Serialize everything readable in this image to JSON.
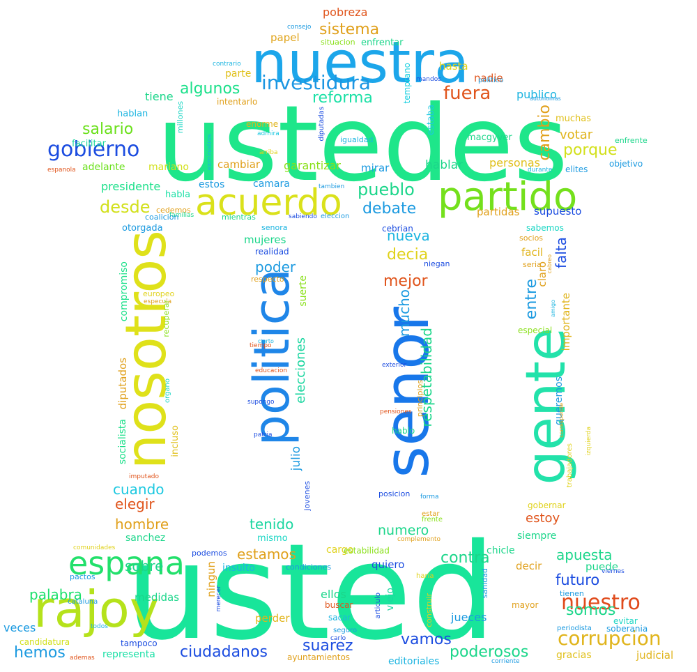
{
  "words": [
    {
      "text": "ustedes",
      "color": "#1ee68a"
    },
    {
      "text": "usted",
      "color": "#18e59a"
    },
    {
      "text": "nuestra",
      "color": "#1ca6ea"
    },
    {
      "text": "senor",
      "color": "#1877ea"
    },
    {
      "text": "gente",
      "color": "#22e2aa"
    },
    {
      "text": "nosotros",
      "color": "#dfe11a"
    },
    {
      "text": "politica",
      "color": "#1f86e8"
    },
    {
      "text": "partido",
      "color": "#74e01c"
    },
    {
      "text": "acuerdo",
      "color": "#dae11b"
    },
    {
      "text": "rajoy",
      "color": "#b5e21b"
    },
    {
      "text": "espana",
      "color": "#22e06b"
    },
    {
      "text": "gobierno",
      "color": "#1b4ce0"
    },
    {
      "text": "investidura",
      "color": "#1c96e2"
    },
    {
      "text": "corrupcion",
      "color": "#e0b41b"
    },
    {
      "text": "nuestro",
      "color": "#e04a1b"
    },
    {
      "text": "pobreza",
      "color": "#e0541b"
    },
    {
      "text": "sistema",
      "color": "#e0a01b"
    },
    {
      "text": "papel",
      "color": "#e0a41b"
    },
    {
      "text": "situacion",
      "color": "#8ae01b"
    },
    {
      "text": "enfrentar",
      "color": "#1bd68a"
    },
    {
      "text": "consejo",
      "color": "#1b9ae0"
    },
    {
      "text": "contrario",
      "color": "#1bb4e0"
    },
    {
      "text": "parte",
      "color": "#e0c01b"
    },
    {
      "text": "algunos",
      "color": "#1be08a"
    },
    {
      "text": "intentarlo",
      "color": "#e0a01b"
    },
    {
      "text": "reforma",
      "color": "#1be0a6"
    },
    {
      "text": "fuera",
      "color": "#e0541b"
    },
    {
      "text": "hasta",
      "color": "#e0d21b"
    },
    {
      "text": "nadie",
      "color": "#e0541b"
    },
    {
      "text": "publico",
      "color": "#1bb4e0"
    },
    {
      "text": "temprano",
      "color": "#1bd0e0"
    },
    {
      "text": "mandos",
      "color": "#1b4ce0"
    },
    {
      "text": "politico",
      "color": "#1b9ae0"
    },
    {
      "text": "autonomas",
      "color": "#1b9ae0"
    },
    {
      "text": "tiene",
      "color": "#1bd68a"
    },
    {
      "text": "hablan",
      "color": "#1bb4e0"
    },
    {
      "text": "millones",
      "color": "#1bd6c4"
    },
    {
      "text": "salario",
      "color": "#6be01b"
    },
    {
      "text": "facilitar",
      "color": "#1bd6a0"
    },
    {
      "text": "enorme",
      "color": "#e0b41b"
    },
    {
      "text": "admira",
      "color": "#1bc8e0"
    },
    {
      "text": "exministros",
      "color": "#1bb4e0"
    },
    {
      "text": "arriba",
      "color": "#e0d21b"
    },
    {
      "text": "diputadas",
      "color": "#1b4ce0"
    },
    {
      "text": "estaba",
      "color": "#1bc8e0"
    },
    {
      "text": "igualdad",
      "color": "#1bb4e0"
    },
    {
      "text": "macgyver",
      "color": "#1bd68a"
    },
    {
      "text": "muchas",
      "color": "#e0c01b"
    },
    {
      "text": "enfrente",
      "color": "#1bd68a"
    },
    {
      "text": "votar",
      "color": "#e0b41b"
    },
    {
      "text": "cambio",
      "color": "#e0a01b"
    },
    {
      "text": "porque",
      "color": "#d2e01b"
    },
    {
      "text": "objetivo",
      "color": "#1b9ae0"
    },
    {
      "text": "elites",
      "color": "#1b9ae0"
    },
    {
      "text": "durante",
      "color": "#1bb4e0"
    },
    {
      "text": "espanola",
      "color": "#e0541b"
    },
    {
      "text": "adelante",
      "color": "#6be01b"
    },
    {
      "text": "mariano",
      "color": "#d2e01b"
    },
    {
      "text": "cambiar",
      "color": "#e0a01b"
    },
    {
      "text": "garantizar",
      "color": "#8ae01b"
    },
    {
      "text": "mirar",
      "color": "#1b9ae0"
    },
    {
      "text": "hablar",
      "color": "#1bd68a"
    },
    {
      "text": "personas",
      "color": "#e0c01b"
    },
    {
      "text": "presidente",
      "color": "#1be08a"
    },
    {
      "text": "estos",
      "color": "#1b9ae0"
    },
    {
      "text": "camara",
      "color": "#1b9ae0"
    },
    {
      "text": "tambien",
      "color": "#1b9ae0"
    },
    {
      "text": "pueblo",
      "color": "#1bd68a"
    },
    {
      "text": "habla",
      "color": "#1be0a6"
    },
    {
      "text": "desde",
      "color": "#d2e01b"
    },
    {
      "text": "cedemos",
      "color": "#e0a01b"
    },
    {
      "text": "familias",
      "color": "#1bd68a"
    },
    {
      "text": "debate",
      "color": "#1b9ae0"
    },
    {
      "text": "partidas",
      "color": "#e0a01b"
    },
    {
      "text": "supuesto",
      "color": "#1b4ce0"
    },
    {
      "text": "coalicion",
      "color": "#1b9ae0"
    },
    {
      "text": "mientras",
      "color": "#1bd68a"
    },
    {
      "text": "sabiendo",
      "color": "#1b4ce0"
    },
    {
      "text": "eleccion",
      "color": "#1b9ae0"
    },
    {
      "text": "otorgada",
      "color": "#1b9ae0"
    },
    {
      "text": "senora",
      "color": "#1bb4e0"
    },
    {
      "text": "cebrian",
      "color": "#1b4ce0"
    },
    {
      "text": "sabemos",
      "color": "#1bd6c4"
    },
    {
      "text": "mujeres",
      "color": "#1bd68a"
    },
    {
      "text": "nueva",
      "color": "#1bb4e0"
    },
    {
      "text": "socios",
      "color": "#e0a01b"
    },
    {
      "text": "realidad",
      "color": "#1b4ce0"
    },
    {
      "text": "decia",
      "color": "#e0d21b"
    },
    {
      "text": "facil",
      "color": "#e0b41b"
    },
    {
      "text": "poder",
      "color": "#1b9ae0"
    },
    {
      "text": "niegan",
      "color": "#1b4ce0"
    },
    {
      "text": "seria",
      "color": "#e0a01b"
    },
    {
      "text": "falta",
      "color": "#1b4ce0"
    },
    {
      "text": "compromiso",
      "color": "#1be08a"
    },
    {
      "text": "respecto",
      "color": "#e0a01b"
    },
    {
      "text": "mejor",
      "color": "#e0541b"
    },
    {
      "text": "claro",
      "color": "#e0a01b"
    },
    {
      "text": "cabreo",
      "color": "#e0a01b"
    },
    {
      "text": "europeo",
      "color": "#e0d21b"
    },
    {
      "text": "suerte",
      "color": "#8ae01b"
    },
    {
      "text": "mucho",
      "color": "#1b9ae0"
    },
    {
      "text": "entre",
      "color": "#1b9ae0"
    },
    {
      "text": "amigo",
      "color": "#1bb4e0"
    },
    {
      "text": "especula",
      "color": "#e0a01b"
    },
    {
      "text": "recuperar",
      "color": "#8ae01b"
    },
    {
      "text": "cierto",
      "color": "#1bb4e0"
    },
    {
      "text": "tiempo",
      "color": "#e0541b"
    },
    {
      "text": "importante",
      "color": "#e0b41b"
    },
    {
      "text": "especial",
      "color": "#8ae01b"
    },
    {
      "text": "diputados",
      "color": "#e0a01b"
    },
    {
      "text": "elecciones",
      "color": "#1bd6a0"
    },
    {
      "text": "respetabilidad",
      "color": "#1bd68a"
    },
    {
      "text": "educacion",
      "color": "#e0541b"
    },
    {
      "text": "exterior",
      "color": "#1b4ce0"
    },
    {
      "text": "organo",
      "color": "#1bd6c4"
    },
    {
      "text": "queremos",
      "color": "#1b9ae0"
    },
    {
      "text": "corresponde",
      "color": "#e0a01b"
    },
    {
      "text": "izquierda",
      "color": "#e0d21b"
    },
    {
      "text": "supongo",
      "color": "#1b4ce0"
    },
    {
      "text": "pensiones",
      "color": "#e0541b"
    },
    {
      "text": "principios",
      "color": "#e0a01b"
    },
    {
      "text": "socialista",
      "color": "#1be08a"
    },
    {
      "text": "incluso",
      "color": "#e0c01b"
    },
    {
      "text": "patria",
      "color": "#1b4ce0"
    },
    {
      "text": "hablo",
      "color": "#1bd68a"
    },
    {
      "text": "julio",
      "color": "#1b9ae0"
    },
    {
      "text": "trabajadores",
      "color": "#e0d21b"
    },
    {
      "text": "jovenes",
      "color": "#1b4ce0"
    },
    {
      "text": "cuando",
      "color": "#1bc8e0"
    },
    {
      "text": "elegir",
      "color": "#e0541b"
    },
    {
      "text": "imputado",
      "color": "#e0541b"
    },
    {
      "text": "posicion",
      "color": "#1b4ce0"
    },
    {
      "text": "forma",
      "color": "#1b9ae0"
    },
    {
      "text": "gobernar",
      "color": "#e0d21b"
    },
    {
      "text": "hombre",
      "color": "#e0a01b"
    },
    {
      "text": "tenido",
      "color": "#1bd6a0"
    },
    {
      "text": "estar",
      "color": "#e0a01b"
    },
    {
      "text": "frente",
      "color": "#8ae01b"
    },
    {
      "text": "estoy",
      "color": "#e0541b"
    },
    {
      "text": "sanchez",
      "color": "#1bd68a"
    },
    {
      "text": "mismo",
      "color": "#1bd6c4"
    },
    {
      "text": "numero",
      "color": "#1bd68a"
    },
    {
      "text": "complemento",
      "color": "#e0a01b"
    },
    {
      "text": "siempre",
      "color": "#1bd68a"
    },
    {
      "text": "comunidades",
      "color": "#e0d21b"
    },
    {
      "text": "estamos",
      "color": "#e0a01b"
    },
    {
      "text": "podemos",
      "color": "#1b4ce0"
    },
    {
      "text": "cargo",
      "color": "#e0d21b"
    },
    {
      "text": "estabilidad",
      "color": "#8ae01b"
    },
    {
      "text": "chicle",
      "color": "#1bd68a"
    },
    {
      "text": "contra",
      "color": "#1bd68a"
    },
    {
      "text": "apuesta",
      "color": "#1bd68a"
    },
    {
      "text": "puede",
      "color": "#1bd68a"
    },
    {
      "text": "decir",
      "color": "#e0a01b"
    },
    {
      "text": "quiero",
      "color": "#1b4ce0"
    },
    {
      "text": "condiciones",
      "color": "#1b9ae0"
    },
    {
      "text": "insulto",
      "color": "#1bb4e0"
    },
    {
      "text": "haria",
      "color": "#e0d21b"
    },
    {
      "text": "sanidad",
      "color": "#1b9ae0"
    },
    {
      "text": "futuro",
      "color": "#1b4ce0"
    },
    {
      "text": "sobre",
      "color": "#1bd68a"
    },
    {
      "text": "pactos",
      "color": "#1b9ae0"
    },
    {
      "text": "palabra",
      "color": "#1be06b"
    },
    {
      "text": "medidas",
      "color": "#1bd68a"
    },
    {
      "text": "ningun",
      "color": "#e0a01b"
    },
    {
      "text": "ellos",
      "color": "#1bd68a"
    },
    {
      "text": "articulo",
      "color": "#1b4ce0"
    },
    {
      "text": "mayor",
      "color": "#e0a01b"
    },
    {
      "text": "somos",
      "color": "#1bd68a"
    },
    {
      "text": "tienen",
      "color": "#1b9ae0"
    },
    {
      "text": "viernes",
      "color": "#1b4ce0"
    },
    {
      "text": "cataluna",
      "color": "#1b9ae0"
    },
    {
      "text": "merecer",
      "color": "#1b4ce0"
    },
    {
      "text": "buscar",
      "color": "#e0541b"
    },
    {
      "text": "construir",
      "color": "#e0d21b"
    },
    {
      "text": "viejo",
      "color": "#1bd6a0"
    },
    {
      "text": "jueces",
      "color": "#1b9ae0"
    },
    {
      "text": "evitar",
      "color": "#1bd6c4"
    },
    {
      "text": "veces",
      "color": "#1b9ae0"
    },
    {
      "text": "todos",
      "color": "#1bb4e0"
    },
    {
      "text": "perder",
      "color": "#e0b41b"
    },
    {
      "text": "sacar",
      "color": "#1bb4e0"
    },
    {
      "text": "periodista",
      "color": "#1b9ae0"
    },
    {
      "text": "soberania",
      "color": "#1b9ae0"
    },
    {
      "text": "candidatura",
      "color": "#d2e01b"
    },
    {
      "text": "seguro",
      "color": "#1b9ae0"
    },
    {
      "text": "carlo",
      "color": "#1b4ce0"
    },
    {
      "text": "tampoco",
      "color": "#1b4ce0"
    },
    {
      "text": "vamos",
      "color": "#1b4ce0"
    },
    {
      "text": "poderosos",
      "color": "#1bd68a"
    },
    {
      "text": "hemos",
      "color": "#1b9ae0"
    },
    {
      "text": "representa",
      "color": "#1be0a6"
    },
    {
      "text": "ciudadanos",
      "color": "#1b4ce0"
    },
    {
      "text": "suarez",
      "color": "#1b4ce0"
    },
    {
      "text": "gracias",
      "color": "#e0c01b"
    },
    {
      "text": "judicial",
      "color": "#e0b41b"
    },
    {
      "text": "ademas",
      "color": "#e0541b"
    },
    {
      "text": "ayuntamientos",
      "color": "#e0a01b"
    },
    {
      "text": "editoriales",
      "color": "#1bb4e0"
    },
    {
      "text": "corriente",
      "color": "#1b9ae0"
    }
  ]
}
